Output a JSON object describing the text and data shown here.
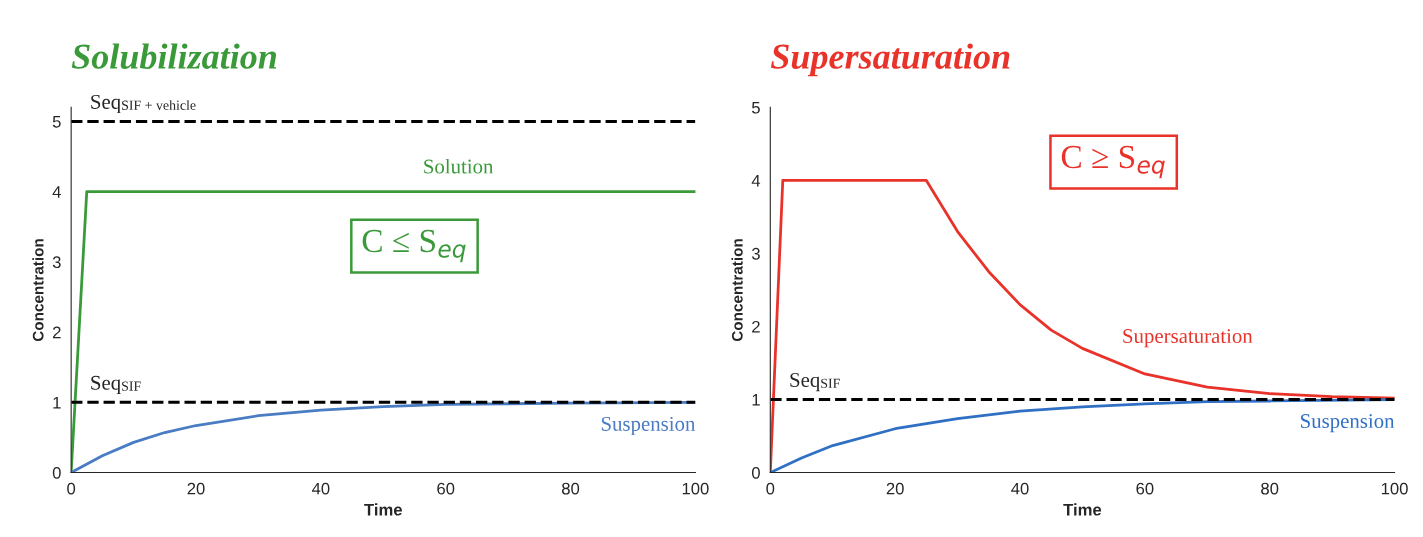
{
  "chart_data": [
    {
      "type": "line",
      "title": "Solubilization",
      "xlabel": "Time",
      "ylabel": "Concentration",
      "xlim": [
        0,
        100
      ],
      "ylim": [
        0,
        5.2
      ],
      "xticks": [
        0,
        20,
        40,
        60,
        80,
        100
      ],
      "yticks": [
        0,
        1,
        2,
        3,
        4,
        5
      ],
      "grid": false,
      "series": [
        {
          "name": "Solution",
          "color": "#3a9a3a",
          "x": [
            0,
            2.5,
            100
          ],
          "values": [
            0,
            4,
            4
          ]
        },
        {
          "name": "Suspension",
          "color": "#4a7cc4",
          "x": [
            0,
            5,
            10,
            15,
            20,
            30,
            40,
            50,
            60,
            70,
            80,
            100
          ],
          "values": [
            0,
            0.24,
            0.43,
            0.57,
            0.67,
            0.81,
            0.89,
            0.94,
            0.97,
            0.98,
            0.99,
            1.0
          ]
        }
      ],
      "ref_lines": [
        {
          "axis": "y",
          "value": 5,
          "label": "Seq$_{SIF + vehicle}$",
          "color": "#000000",
          "line_style": "dashed"
        },
        {
          "axis": "y",
          "value": 1,
          "label": "Seq$_{SIF}$",
          "color": "#000000",
          "line_style": "dashed"
        }
      ],
      "annotations": [
        "C ≤ S$_{eq}$"
      ]
    },
    {
      "type": "line",
      "title": "Supersaturation",
      "xlabel": "Time",
      "ylabel": "Concentration",
      "xlim": [
        0,
        100
      ],
      "ylim": [
        0,
        5
      ],
      "xticks": [
        0,
        20,
        40,
        60,
        80,
        100
      ],
      "yticks": [
        0,
        1,
        2,
        3,
        4,
        5
      ],
      "grid": false,
      "series": [
        {
          "name": "Supersaturation",
          "color": "#e8322a",
          "x": [
            0,
            2,
            25,
            30,
            35,
            40,
            45,
            50,
            60,
            70,
            80,
            90,
            100
          ],
          "values": [
            0,
            4,
            4,
            3.3,
            2.75,
            2.3,
            1.95,
            1.7,
            1.35,
            1.17,
            1.08,
            1.04,
            1.02
          ]
        },
        {
          "name": "Suspension",
          "color": "#2f6fc4",
          "x": [
            0,
            5,
            10,
            20,
            30,
            40,
            50,
            60,
            70,
            80,
            100
          ],
          "values": [
            0,
            0.2,
            0.37,
            0.6,
            0.74,
            0.84,
            0.9,
            0.94,
            0.97,
            0.98,
            1.0
          ]
        }
      ],
      "ref_lines": [
        {
          "axis": "y",
          "value": 1,
          "label": "Seq$_{SIF}$",
          "color": "#000000",
          "line_style": "dashed"
        }
      ],
      "annotations": [
        "C ≥ S$_{eq}$"
      ]
    }
  ]
}
